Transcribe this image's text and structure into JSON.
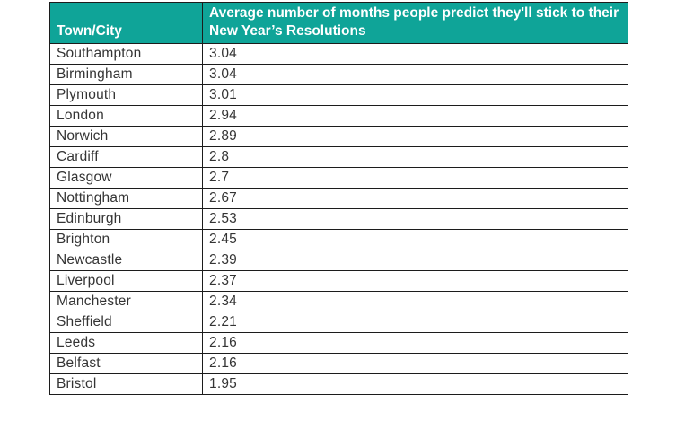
{
  "table": {
    "header": {
      "col1": "Town/City",
      "col2": "Average number of months people predict they'll stick to their New Year’s Resolutions"
    },
    "rows": [
      [
        "Southampton",
        "3.04"
      ],
      [
        "Birmingham",
        "3.04"
      ],
      [
        "Plymouth",
        "3.01"
      ],
      [
        "London",
        "2.94"
      ],
      [
        "Norwich",
        "2.89"
      ],
      [
        "Cardiff",
        "2.8"
      ],
      [
        "Glasgow",
        "2.7"
      ],
      [
        "Nottingham",
        "2.67"
      ],
      [
        "Edinburgh",
        "2.53"
      ],
      [
        "Brighton",
        "2.45"
      ],
      [
        "Newcastle",
        "2.39"
      ],
      [
        "Liverpool",
        "2.37"
      ],
      [
        "Manchester",
        "2.34"
      ],
      [
        "Sheffield",
        "2.21"
      ],
      [
        "Leeds",
        "2.16"
      ],
      [
        "Belfast",
        "2.16"
      ],
      [
        "Bristol",
        "1.95"
      ]
    ]
  },
  "colors": {
    "header_bg": "#0fa498",
    "header_text": "#ffffff",
    "border": "#1c1c1c",
    "body_text": "#343434"
  },
  "chart_data": {
    "type": "table",
    "title": "Average number of months people predict they'll stick to their New Year’s Resolutions",
    "columns": [
      "Town/City",
      "Average number of months people predict they'll stick to their New Year’s Resolutions"
    ],
    "rows": [
      [
        "Southampton",
        3.04
      ],
      [
        "Birmingham",
        3.04
      ],
      [
        "Plymouth",
        3.01
      ],
      [
        "London",
        2.94
      ],
      [
        "Norwich",
        2.89
      ],
      [
        "Cardiff",
        2.8
      ],
      [
        "Glasgow",
        2.7
      ],
      [
        "Nottingham",
        2.67
      ],
      [
        "Edinburgh",
        2.53
      ],
      [
        "Brighton",
        2.45
      ],
      [
        "Newcastle",
        2.39
      ],
      [
        "Liverpool",
        2.37
      ],
      [
        "Manchester",
        2.34
      ],
      [
        "Sheffield",
        2.21
      ],
      [
        "Leeds",
        2.16
      ],
      [
        "Belfast",
        2.16
      ],
      [
        "Bristol",
        1.95
      ]
    ]
  }
}
